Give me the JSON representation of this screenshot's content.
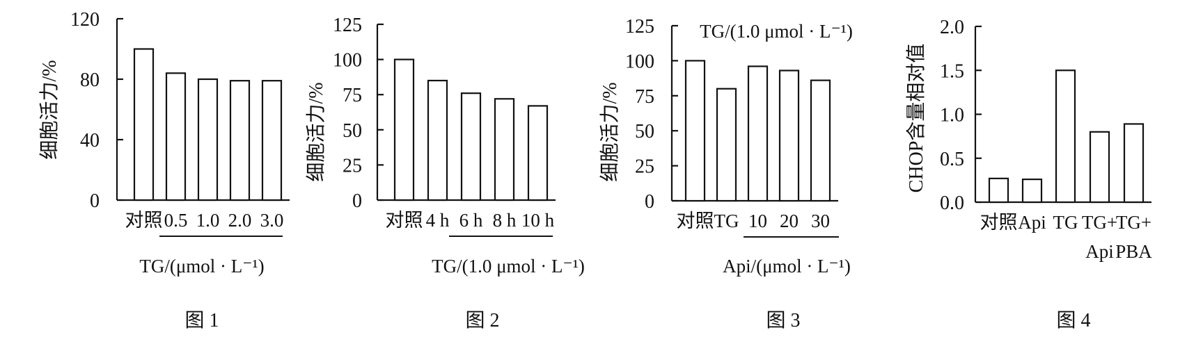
{
  "figures": [
    {
      "caption": "图 1"
    },
    {
      "caption": "图 2"
    },
    {
      "caption": "图 3"
    },
    {
      "caption": "图 4"
    }
  ],
  "chart_data": [
    {
      "type": "bar",
      "ylabel": "细胞活力/%",
      "xlabel": "TG/(μmol · L⁻¹)",
      "categories": [
        "对照",
        "0.5",
        "1.0",
        "2.0",
        "3.0"
      ],
      "values": [
        100,
        84,
        80,
        79,
        79
      ],
      "ylim": [
        0,
        120
      ],
      "yticks": [
        "0",
        "40",
        "80",
        "120"
      ],
      "grid": false,
      "caption": "图 1"
    },
    {
      "type": "bar",
      "ylabel": "细胞活力/%",
      "xlabel": "TG/(1.0 μmol · L⁻¹)",
      "categories": [
        "对照",
        "4 h",
        "6 h",
        "8 h",
        "10 h"
      ],
      "values": [
        100,
        85,
        76,
        72,
        67
      ],
      "ylim": [
        0,
        125
      ],
      "yticks": [
        "0",
        "25",
        "50",
        "75",
        "100",
        "125"
      ],
      "grid": false,
      "caption": "图 2"
    },
    {
      "type": "bar",
      "ylabel": "细胞活力/%",
      "xlabel": "Api/(μmol · L⁻¹)",
      "annotation": "TG/(1.0 μmol · L⁻¹)",
      "categories": [
        "对照",
        "TG",
        "10",
        "20",
        "30"
      ],
      "values": [
        100,
        80,
        96,
        93,
        86
      ],
      "ylim": [
        0,
        125
      ],
      "yticks": [
        "0",
        "25",
        "50",
        "75",
        "100",
        "125"
      ],
      "grid": false,
      "caption": "图 3"
    },
    {
      "type": "bar",
      "ylabel": "CHOP含量相对值",
      "categories": [
        "对照",
        "Api",
        "TG",
        "TG+\nApi",
        "TG+\nPBA"
      ],
      "values": [
        0.27,
        0.26,
        1.5,
        0.8,
        0.89
      ],
      "ylim": [
        0,
        2.0
      ],
      "yticks": [
        "0.0",
        "0.5",
        "1.0",
        "1.5",
        "2.0"
      ],
      "grid": false,
      "caption": "图 4"
    }
  ]
}
